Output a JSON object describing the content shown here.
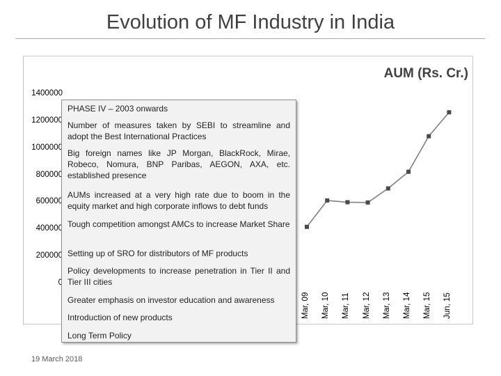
{
  "slide": {
    "title": "Evolution of MF Industry in India",
    "date": "19 March 2018"
  },
  "chart_data": {
    "type": "line",
    "title": "AUM (Rs. Cr.)",
    "categories": [
      "Mar, 09",
      "Mar, 10",
      "Mar, 11",
      "Mar, 12",
      "Mar, 13",
      "Mar, 14",
      "Mar, 15",
      "Jun, 15"
    ],
    "values": [
      418000,
      613000,
      600000,
      598000,
      702000,
      825000,
      1088000,
      1265000
    ],
    "yticks": [
      "1400000",
      "1200000",
      "1000000",
      "800000",
      "600000",
      "400000",
      "200000",
      "0"
    ],
    "ylim": [
      0,
      1400000
    ],
    "grid": false,
    "legend": "none",
    "line_color": "#7f7f7f"
  },
  "overlay": {
    "heading": "PHASE IV – 2003 onwards",
    "bullets": [
      "Number of measures taken by SEBI to streamline and adopt the Best International Practices",
      "Big foreign names like JP Morgan, BlackRock, Mirae, Robeco, Nomura, BNP Paribas, AEGON, AXA, etc. established presence",
      "AUMs increased at a very high rate due to boom in the equity market and high corporate inflows to debt funds",
      "Tough competition amongst AMCs to increase Market Share",
      "Setting up of SRO for distributors of MF products",
      "Policy developments to increase penetration in Tier II and Tier III cities",
      "Greater emphasis on investor education and awareness",
      "Introduction of new products",
      "Long Term Policy"
    ]
  }
}
